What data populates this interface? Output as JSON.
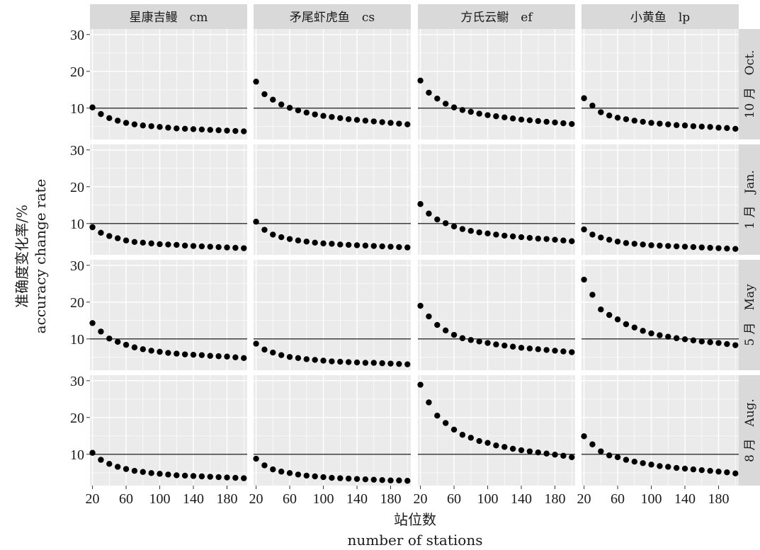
{
  "chart_data": {
    "type": "scatter",
    "facet_columns": [
      "星康吉鳗　cm",
      "矛尾虾虎鱼　cs",
      "方氏云鳚　ef",
      "小黄鱼　lp"
    ],
    "facet_rows": [
      "10 月　Oct.",
      "1 月　Jan.",
      "5 月　May",
      "8 月　Aug."
    ],
    "xlabel_cn": "站位数",
    "xlabel_en": "number of stations",
    "ylabel_cn": "准确度变化率/%",
    "ylabel_en": "accuracy change rate",
    "x": [
      20,
      30,
      40,
      50,
      60,
      70,
      80,
      90,
      100,
      110,
      120,
      130,
      140,
      150,
      160,
      170,
      180,
      190,
      200
    ],
    "xticks": [
      20,
      60,
      100,
      140,
      180
    ],
    "yticks": [
      10,
      20,
      30
    ],
    "xlim": [
      17,
      204
    ],
    "ylim": [
      1.5,
      31.5
    ],
    "reference_line_y": 10,
    "panels": [
      [
        {
          "row": "10 月　Oct.",
          "col": "星康吉鳗　cm",
          "y": [
            10.2,
            8.4,
            7.3,
            6.6,
            6.0,
            5.6,
            5.3,
            5.1,
            4.9,
            4.7,
            4.5,
            4.4,
            4.3,
            4.2,
            4.1,
            4.0,
            3.9,
            3.8,
            3.7
          ]
        },
        {
          "row": "10 月　Oct.",
          "col": "矛尾虾虎鱼　cs",
          "y": [
            17.2,
            13.8,
            12.3,
            11.0,
            10.1,
            9.4,
            8.8,
            8.3,
            7.9,
            7.6,
            7.3,
            7.0,
            6.8,
            6.6,
            6.4,
            6.2,
            6.0,
            5.8,
            5.6
          ]
        },
        {
          "row": "10 月　Oct.",
          "col": "方氏云鳚　ef",
          "y": [
            17.5,
            14.2,
            12.6,
            11.2,
            10.2,
            9.5,
            9.0,
            8.5,
            8.1,
            7.8,
            7.5,
            7.2,
            6.9,
            6.7,
            6.5,
            6.3,
            6.1,
            5.9,
            5.7
          ]
        },
        {
          "row": "10 月　Oct.",
          "col": "小黄鱼　lp",
          "y": [
            12.7,
            10.7,
            8.9,
            8.0,
            7.4,
            7.0,
            6.6,
            6.3,
            6.0,
            5.8,
            5.6,
            5.4,
            5.3,
            5.1,
            5.0,
            4.9,
            4.7,
            4.6,
            4.4
          ]
        }
      ],
      [
        {
          "row": "1 月　Jan.",
          "col": "星康吉鳗　cm",
          "y": [
            9.0,
            7.5,
            6.6,
            6.0,
            5.4,
            5.0,
            4.8,
            4.6,
            4.4,
            4.3,
            4.2,
            4.0,
            3.9,
            3.8,
            3.7,
            3.6,
            3.5,
            3.4,
            3.3
          ]
        },
        {
          "row": "1 月　Jan.",
          "col": "矛尾虾虎鱼　cs",
          "y": [
            10.5,
            8.3,
            7.0,
            6.3,
            5.8,
            5.4,
            5.1,
            4.8,
            4.6,
            4.5,
            4.3,
            4.2,
            4.1,
            4.0,
            3.9,
            3.8,
            3.7,
            3.6,
            3.5
          ]
        },
        {
          "row": "1 月　Jan.",
          "col": "方氏云鳚　ef",
          "y": [
            15.3,
            12.7,
            11.1,
            10.1,
            9.2,
            8.5,
            8.0,
            7.6,
            7.3,
            7.0,
            6.7,
            6.5,
            6.3,
            6.1,
            5.9,
            5.8,
            5.6,
            5.4,
            5.2
          ]
        },
        {
          "row": "1 月　Jan.",
          "col": "小黄鱼　lp",
          "y": [
            8.4,
            7.0,
            6.2,
            5.6,
            5.1,
            4.7,
            4.5,
            4.3,
            4.1,
            4.0,
            3.9,
            3.8,
            3.7,
            3.6,
            3.5,
            3.4,
            3.3,
            3.2,
            3.1
          ]
        }
      ],
      [
        {
          "row": "5 月　May",
          "col": "星康吉鳗　cm",
          "y": [
            14.3,
            12.0,
            10.1,
            9.2,
            8.4,
            7.7,
            7.2,
            6.8,
            6.5,
            6.2,
            6.0,
            5.8,
            5.7,
            5.6,
            5.4,
            5.3,
            5.2,
            5.0,
            4.8
          ]
        },
        {
          "row": "5 月　May",
          "col": "矛尾虾虎鱼　cs",
          "y": [
            8.7,
            7.1,
            6.3,
            5.6,
            5.1,
            4.8,
            4.5,
            4.3,
            4.1,
            3.9,
            3.8,
            3.7,
            3.6,
            3.5,
            3.5,
            3.4,
            3.3,
            3.2,
            3.1
          ]
        },
        {
          "row": "5 月　May",
          "col": "方氏云鳚　ef",
          "y": [
            19.0,
            16.1,
            13.8,
            12.3,
            11.1,
            10.2,
            9.7,
            9.3,
            8.9,
            8.5,
            8.2,
            7.9,
            7.6,
            7.4,
            7.2,
            7.0,
            6.8,
            6.6,
            6.4
          ]
        },
        {
          "row": "5 月　May",
          "col": "小黄鱼　lp",
          "y": [
            26.1,
            22.0,
            18.0,
            16.5,
            15.3,
            14.0,
            13.1,
            12.2,
            11.5,
            11.0,
            10.6,
            10.2,
            9.9,
            9.6,
            9.3,
            9.1,
            8.9,
            8.6,
            8.3
          ]
        }
      ],
      [
        {
          "row": "8 月　Aug.",
          "col": "星康吉鳗　cm",
          "y": [
            10.4,
            8.5,
            7.4,
            6.6,
            6.0,
            5.5,
            5.2,
            4.9,
            4.7,
            4.5,
            4.3,
            4.2,
            4.1,
            4.0,
            3.9,
            3.8,
            3.7,
            3.6,
            3.5
          ]
        },
        {
          "row": "8 月　Aug.",
          "col": "矛尾虾虎鱼　cs",
          "y": [
            8.8,
            7.0,
            5.9,
            5.3,
            4.9,
            4.5,
            4.2,
            4.0,
            3.8,
            3.6,
            3.5,
            3.4,
            3.3,
            3.2,
            3.1,
            3.0,
            2.9,
            2.9,
            2.8
          ]
        },
        {
          "row": "8 月　Aug.",
          "col": "方氏云鳚　ef",
          "y": [
            28.9,
            24.1,
            20.5,
            18.5,
            16.7,
            15.3,
            14.5,
            13.6,
            13.1,
            12.4,
            12.0,
            11.5,
            11.1,
            10.8,
            10.5,
            10.2,
            9.9,
            9.6,
            9.2
          ]
        },
        {
          "row": "8 月　Aug.",
          "col": "小黄鱼　lp",
          "y": [
            14.9,
            12.7,
            10.8,
            9.7,
            9.2,
            8.5,
            8.0,
            7.6,
            7.2,
            6.8,
            6.6,
            6.3,
            6.1,
            5.9,
            5.7,
            5.5,
            5.3,
            5.1,
            4.8
          ]
        }
      ]
    ]
  },
  "colors": {
    "panel_background": "#ebebeb",
    "strip_background": "#d9d9d9",
    "grid": "#ffffff",
    "points": "#000000",
    "reference_line": "#000000"
  }
}
